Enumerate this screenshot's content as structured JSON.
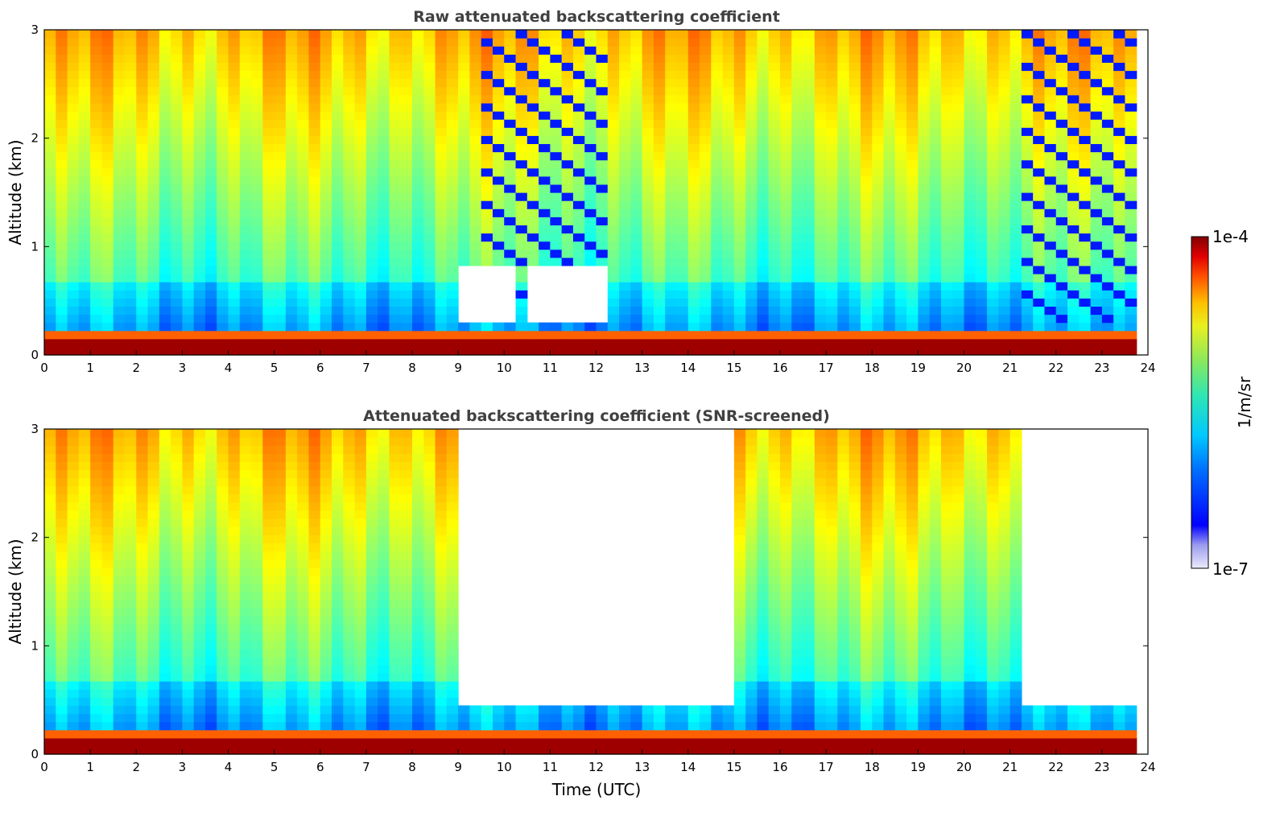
{
  "chart_data": [
    {
      "type": "heatmap",
      "title": "Raw attenuated backscattering coefficient",
      "xlabel": "",
      "ylabel": "Altitude (km)",
      "xlim": [
        0,
        24
      ],
      "ylim": [
        0,
        3
      ],
      "x_ticks": [
        "0",
        "1",
        "2",
        "3",
        "4",
        "5",
        "6",
        "7",
        "8",
        "9",
        "10",
        "11",
        "12",
        "13",
        "14",
        "15",
        "16",
        "17",
        "18",
        "19",
        "20",
        "21",
        "22",
        "23",
        "24"
      ],
      "y_ticks": [
        "0",
        "1",
        "2",
        "3"
      ],
      "screening": "raw",
      "features": {
        "surface_layer_top_km": 0.2,
        "no_data_after_hour": 23.7,
        "fog_or_low_cloud_hours": [
          [
            9.0,
            10.3
          ],
          [
            10.4,
            12.3
          ]
        ],
        "sparse_signal_hours": [
          [
            9.5,
            12.3
          ],
          [
            21.2,
            23.7
          ]
        ]
      }
    },
    {
      "type": "heatmap",
      "title": "Attenuated backscattering coefficient (SNR-screened)",
      "xlabel": "Time (UTC)",
      "ylabel": "Altitude (km)",
      "xlim": [
        0,
        24
      ],
      "ylim": [
        0,
        3
      ],
      "x_ticks": [
        "0",
        "1",
        "2",
        "3",
        "4",
        "5",
        "6",
        "7",
        "8",
        "9",
        "10",
        "11",
        "12",
        "13",
        "14",
        "15",
        "16",
        "17",
        "18",
        "19",
        "20",
        "21",
        "22",
        "23",
        "24"
      ],
      "y_ticks": [
        "0",
        "1",
        "2",
        "3"
      ],
      "screening": "SNR",
      "features": {
        "surface_layer_top_km": 0.2,
        "no_data_after_hour": 23.7,
        "screened_out_hours": [
          [
            9.0,
            15.0
          ],
          [
            21.2,
            23.7
          ]
        ]
      }
    }
  ],
  "colorbar": {
    "label": "1/m/sr",
    "max_label": "1e-4",
    "min_label": "1e-7",
    "scale": "log",
    "colormap": "jet"
  }
}
